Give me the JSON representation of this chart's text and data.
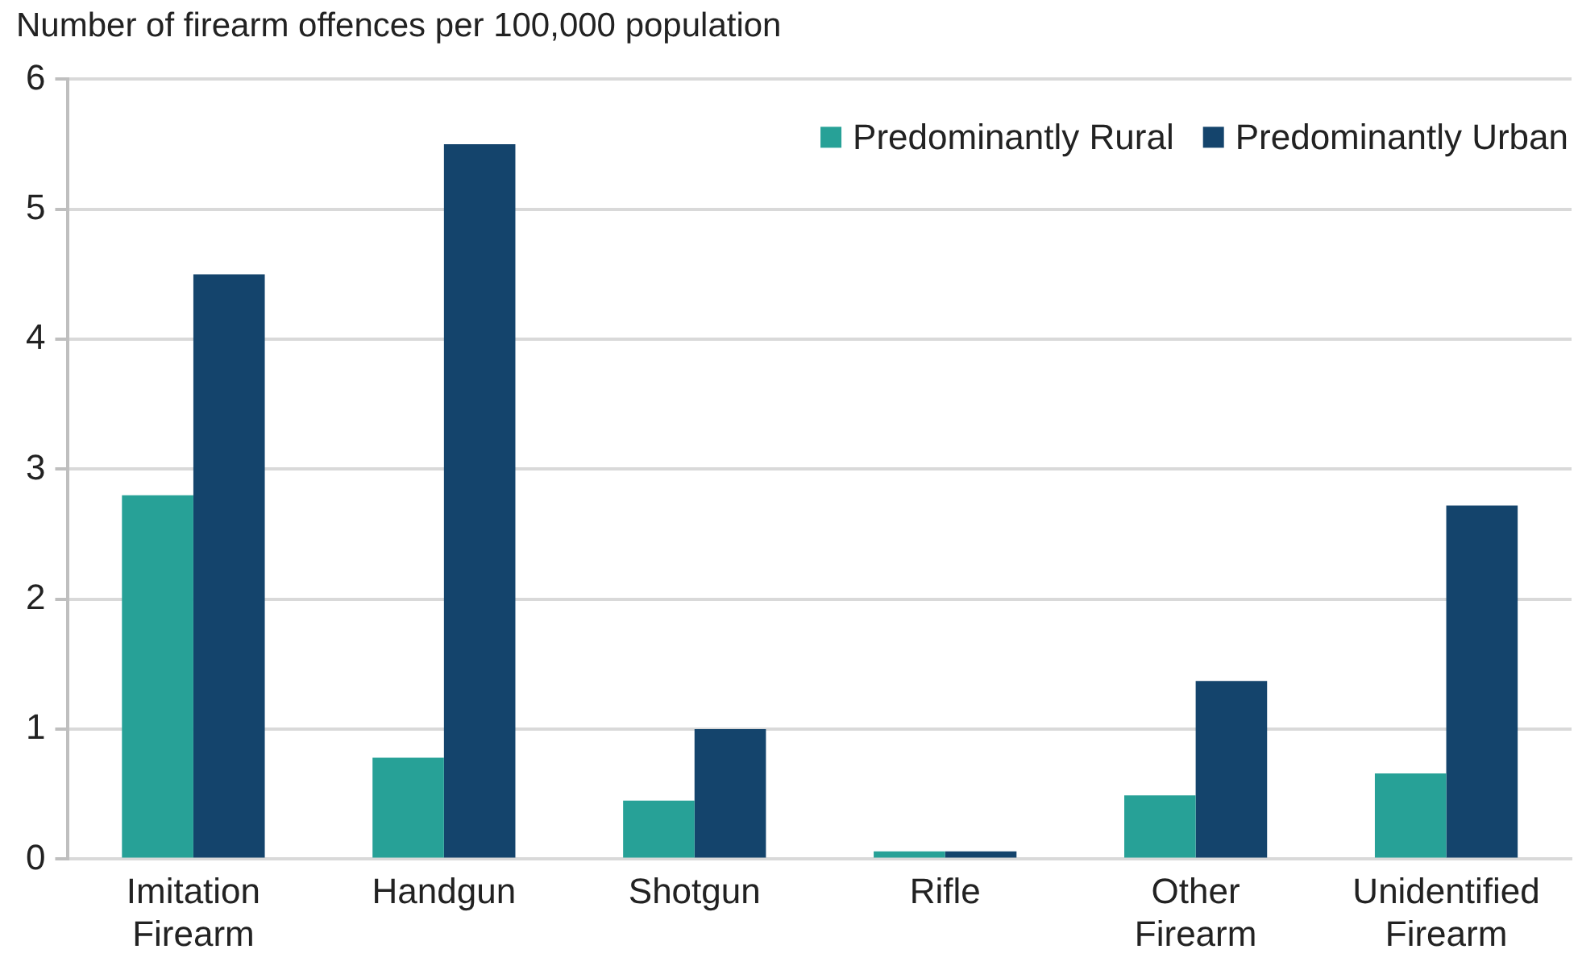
{
  "chart_data": {
    "type": "bar",
    "ylabel": "Number of firearm offences per 100,000 population",
    "categories": [
      "Imitation Firearm",
      "Handgun",
      "Shotgun",
      "Rifle",
      "Other Firearm",
      "Unidentified Firearm"
    ],
    "series": [
      {
        "name": "Predominantly Rural",
        "color": "#27a197",
        "values": [
          2.8,
          0.78,
          0.45,
          0.06,
          0.49,
          0.66
        ]
      },
      {
        "name": "Predominantly Urban",
        "color": "#14446c",
        "values": [
          4.5,
          5.5,
          1.0,
          0.06,
          1.37,
          2.72
        ]
      }
    ],
    "ylim": [
      0,
      6
    ],
    "yticks": [
      0,
      1,
      2,
      3,
      4,
      5,
      6
    ],
    "grid": "y",
    "legend": "top right"
  }
}
